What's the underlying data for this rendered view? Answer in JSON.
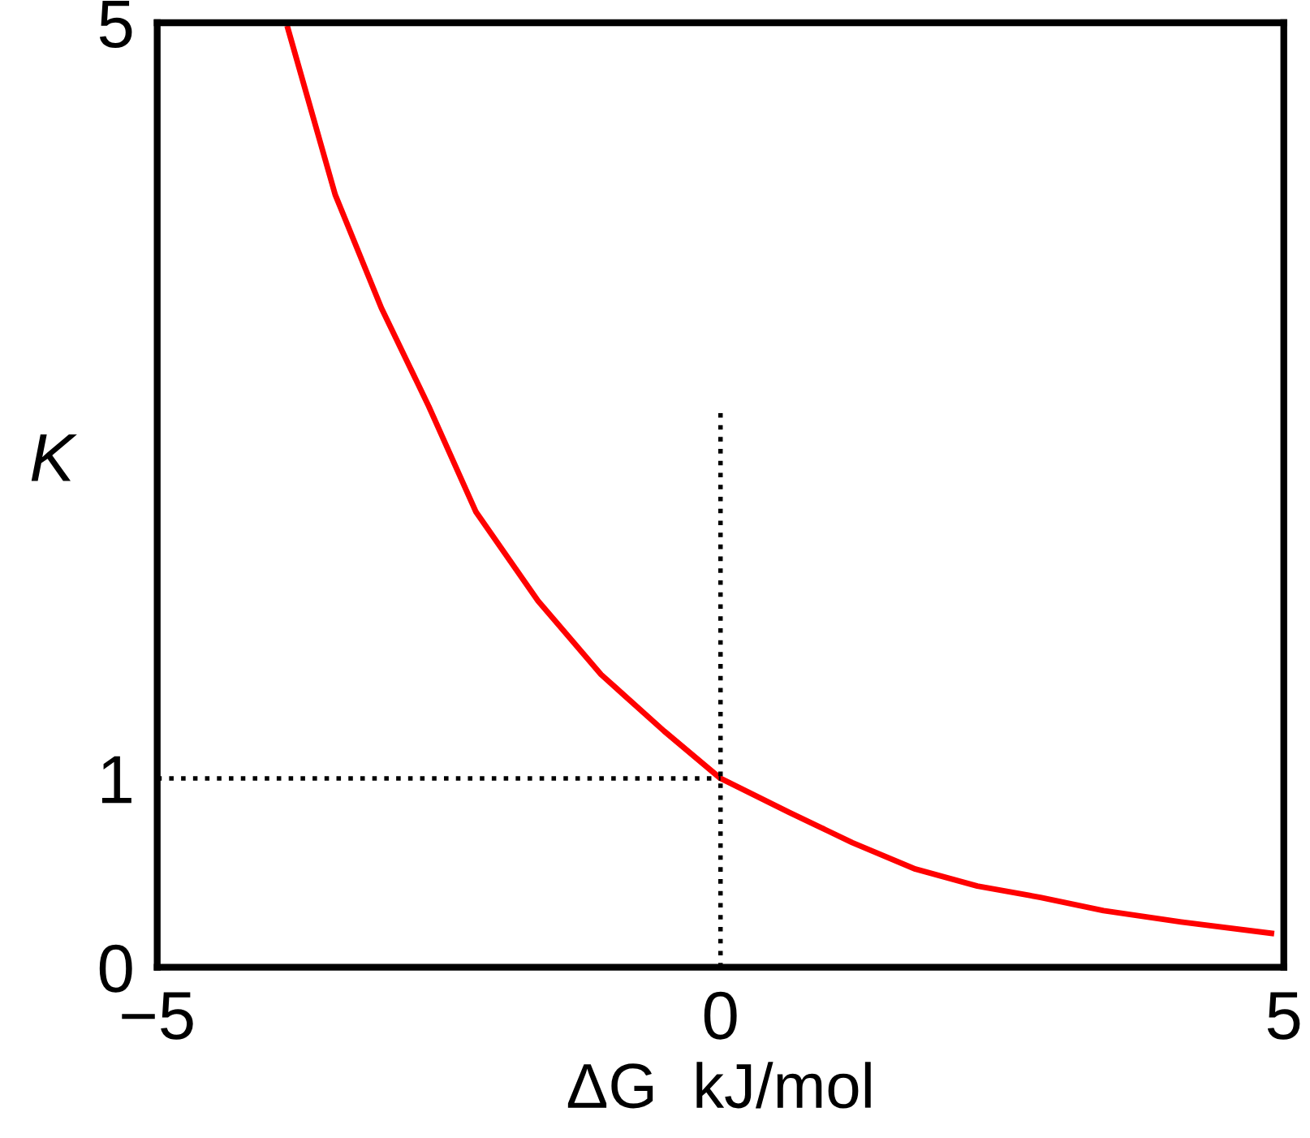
{
  "chart_data": {
    "type": "line",
    "xlabel": "ΔG  kJ/mol",
    "ylabel": "K",
    "xlim": [
      -5,
      5
    ],
    "ylim": [
      0,
      5
    ],
    "xticks": [
      {
        "value": -5,
        "label": "−5"
      },
      0,
      5
    ],
    "yticks": [
      0,
      1,
      5
    ],
    "grid": false,
    "legend": false,
    "series": [
      {
        "color": "#ff0000",
        "line_style": "solid",
        "x": [
          -3.84,
          -3.42,
          -3.01,
          -2.59,
          -2.17,
          -1.62,
          -1.06,
          -0.5,
          0,
          0.61,
          1.17,
          1.73,
          2.28,
          2.84,
          3.4,
          4.09,
          4.89
        ],
        "values": [
          4.97,
          4.09,
          3.49,
          2.97,
          2.41,
          1.94,
          1.55,
          1.25,
          1.0,
          0.82,
          0.66,
          0.52,
          0.43,
          0.37,
          0.3,
          0.24,
          0.18
        ]
      },
      {
        "color": "#000000",
        "line_style": "dotted",
        "x": [
          0,
          0
        ],
        "values": [
          0,
          2.97
        ]
      },
      {
        "color": "#000000",
        "line_style": "dotted",
        "x": [
          -5,
          0
        ],
        "values": [
          1,
          1
        ]
      }
    ]
  }
}
